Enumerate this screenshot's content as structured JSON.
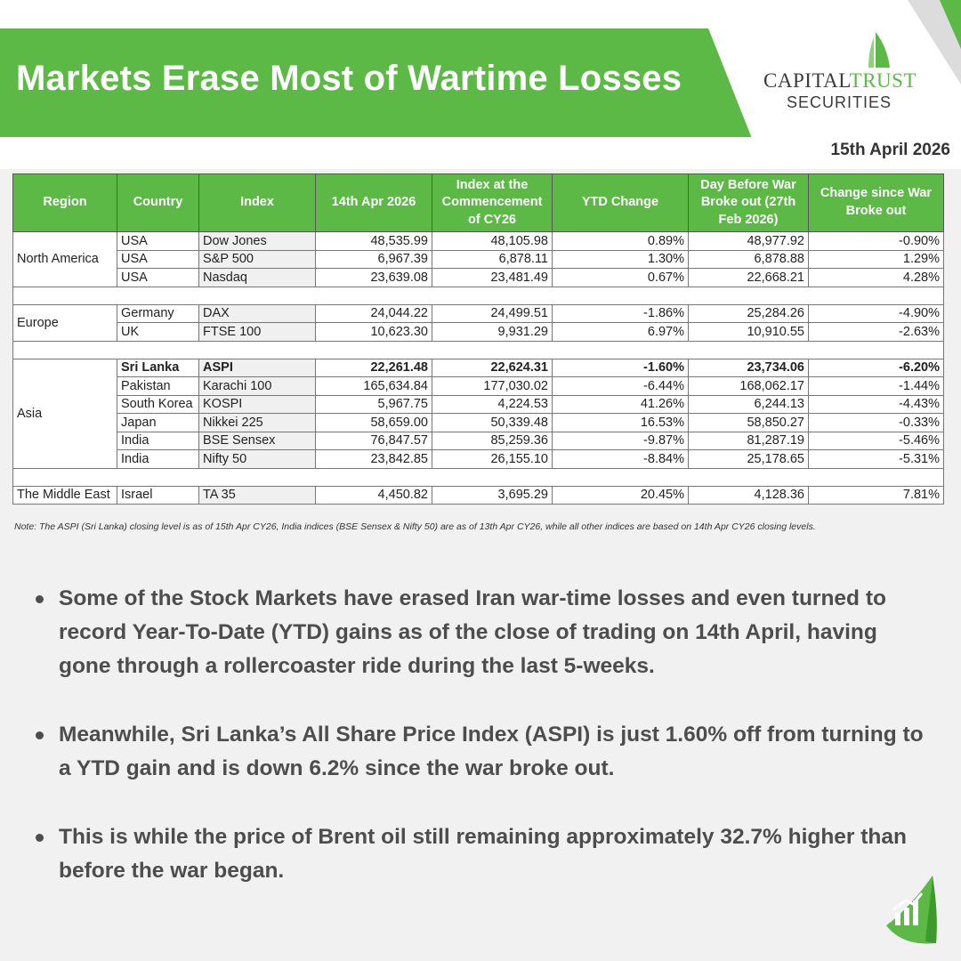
{
  "header": {
    "title": "Markets Erase Most of Wartime Losses",
    "date": "15th April 2026"
  },
  "logo": {
    "name_part1": "CAPITAL",
    "name_part2": "TRUST",
    "sub": "SECURITIES"
  },
  "table": {
    "headers": [
      "Region",
      "Country",
      "Index",
      "14th Apr 2026",
      "Index at the Commencement of CY26",
      "YTD Change",
      "Day Before War Broke out (27th Feb 2026)",
      "Change since War Broke out"
    ],
    "groups": [
      {
        "region": "North America",
        "rows": [
          [
            "USA",
            "Dow Jones",
            "48,535.99",
            "48,105.98",
            "0.89%",
            "48,977.92",
            "-0.90%"
          ],
          [
            "USA",
            "S&P 500",
            "6,967.39",
            "6,878.11",
            "1.30%",
            "6,878.88",
            "1.29%"
          ],
          [
            "USA",
            "Nasdaq",
            "23,639.08",
            "23,481.49",
            "0.67%",
            "22,668.21",
            "4.28%"
          ]
        ]
      },
      {
        "region": "Europe",
        "rows": [
          [
            "Germany",
            "DAX",
            "24,044.22",
            "24,499.51",
            "-1.86%",
            "25,284.26",
            "-4.90%"
          ],
          [
            "UK",
            "FTSE 100",
            "10,623.30",
            "9,931.29",
            "6.97%",
            "10,910.55",
            "-2.63%"
          ]
        ]
      },
      {
        "region": "Asia",
        "rows": [
          [
            "Sri Lanka",
            "ASPI",
            "22,261.48",
            "22,624.31",
            "-1.60%",
            "23,734.06",
            "-6.20%"
          ],
          [
            "Pakistan",
            "Karachi 100",
            "165,634.84",
            "177,030.02",
            "-6.44%",
            "168,062.17",
            "-1.44%"
          ],
          [
            "South Korea",
            "KOSPI",
            "5,967.75",
            "4,224.53",
            "41.26%",
            "6,244.13",
            "-4.43%"
          ],
          [
            "Japan",
            "Nikkei 225",
            "58,659.00",
            "50,339.48",
            "16.53%",
            "58,850.27",
            "-0.33%"
          ],
          [
            "India",
            "BSE Sensex",
            "76,847.57",
            "85,259.36",
            "-9.87%",
            "81,287.19",
            "-5.46%"
          ],
          [
            "India",
            "Nifty 50",
            "23,842.85",
            "26,155.10",
            "-8.84%",
            "25,178.65",
            "-5.31%"
          ]
        ]
      },
      {
        "region": "The Middle East",
        "rows": [
          [
            "Israel",
            "TA 35",
            "4,450.82",
            "3,695.29",
            "20.45%",
            "4,128.36",
            "7.81%"
          ]
        ]
      }
    ]
  },
  "note": "Note: The ASPI (Sri Lanka) closing level is as of 15th Apr CY26, India indices (BSE Sensex & Nifty 50) are as of 13th Apr CY26, while all other indices are based on 14th Apr CY26 closing levels.",
  "bullets": [
    "Some of the Stock Markets have erased Iran war-time losses and even turned to record Year-To-Date (YTD) gains as of the close of trading on 14th April, having gone through a rollercoaster ride during the last 5-weeks.",
    "Meanwhile, Sri Lanka’s All Share Price Index (ASPI) is just 1.60% off from turning to a YTD gain and is down 6.2% since the war broke out.",
    "This is while the price of Brent oil still remaining approximately 32.7% higher than before the war began."
  ],
  "colors": {
    "brand_green": "#5cb946",
    "text_grey": "#4d4d4d"
  },
  "icons": {
    "logo": "sail-icon",
    "badge": "bar-chart-growth-icon"
  }
}
